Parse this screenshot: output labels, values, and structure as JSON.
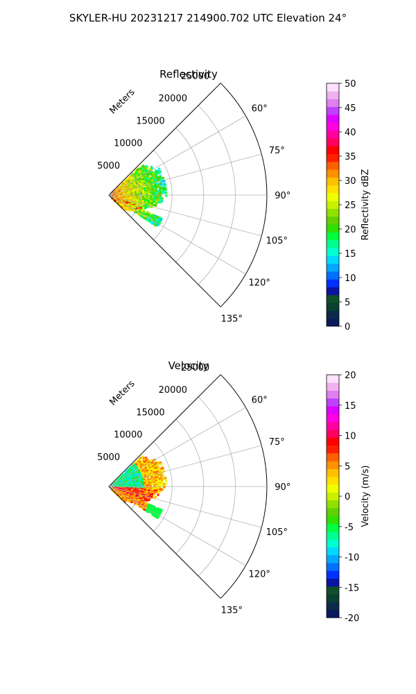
{
  "figure": {
    "suptitle": "SKYLER-HU  20231217  214900.702 UTC Elevation 24°"
  },
  "chart_data": [
    {
      "type": "polar-sector",
      "title": "Reflectivity",
      "radial_label": "Meters",
      "theta_range_deg": [
        45,
        135
      ],
      "r_range_m": [
        0,
        25000
      ],
      "r_ticks": [
        "5000",
        "10000",
        "15000",
        "20000",
        "25000"
      ],
      "theta_ticks": [
        "60°",
        "75°",
        "90°",
        "105°",
        "120°",
        "135°"
      ],
      "echo_extent_m": {
        "min": 0,
        "max": 9000
      },
      "colorbar": {
        "label": "Reflectivity dBZ",
        "range": [
          0,
          50
        ],
        "ticks": [
          "0",
          "5",
          "10",
          "15",
          "20",
          "25",
          "30",
          "35",
          "40",
          "45",
          "50"
        ],
        "colors": [
          "#0b1a5c",
          "#0c2a4a",
          "#0a4030",
          "#10502a",
          "#0a14a0",
          "#0030ff",
          "#0070ff",
          "#00a8ff",
          "#00d8ff",
          "#00ffd0",
          "#00ff90",
          "#00ff40",
          "#30e000",
          "#60d000",
          "#90e000",
          "#c8f000",
          "#f0ff00",
          "#ffe000",
          "#ffc000",
          "#ff9000",
          "#ff6000",
          "#ff2000",
          "#ff0000",
          "#ff0060",
          "#ff00a0",
          "#ff00e0",
          "#e000ff",
          "#c040ff",
          "#e080f0",
          "#f0b0f0",
          "#ffe0ff"
        ]
      }
    },
    {
      "type": "polar-sector",
      "title": "Velocity",
      "radial_label": "Meters",
      "theta_range_deg": [
        45,
        135
      ],
      "r_range_m": [
        0,
        25000
      ],
      "r_ticks": [
        "5000",
        "10000",
        "15000",
        "20000",
        "25000"
      ],
      "theta_ticks": [
        "60°",
        "75°",
        "90°",
        "105°",
        "120°",
        "135°"
      ],
      "echo_extent_m": {
        "min": 0,
        "max": 9000
      },
      "colorbar": {
        "label": "Velocity (m/s)",
        "range": [
          -20,
          20
        ],
        "ticks": [
          "-20",
          "-15",
          "-10",
          "-5",
          "0",
          "5",
          "10",
          "15",
          "20"
        ],
        "colors": [
          "#0b1a5c",
          "#0c2a4a",
          "#0a4030",
          "#10502a",
          "#0a14a0",
          "#0030ff",
          "#0070ff",
          "#00a8ff",
          "#00d8ff",
          "#00ffd0",
          "#00ff90",
          "#00ff40",
          "#30e000",
          "#60d000",
          "#90e000",
          "#c8f000",
          "#f0ff00",
          "#ffe000",
          "#ffc000",
          "#ff9000",
          "#ff6000",
          "#ff2000",
          "#ff0000",
          "#ff0060",
          "#ff00a0",
          "#ff00e0",
          "#e000ff",
          "#c040ff",
          "#e080f0",
          "#f0b0f0",
          "#ffe0ff"
        ]
      }
    }
  ]
}
